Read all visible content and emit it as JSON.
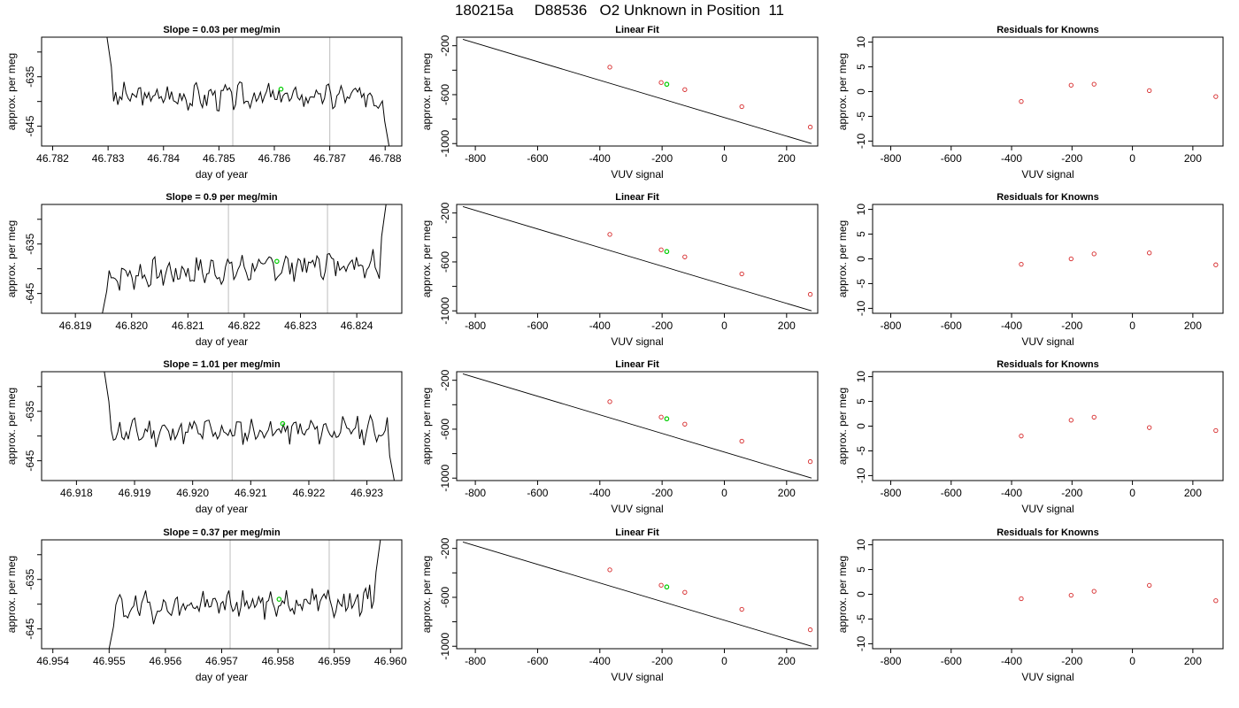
{
  "figure": {
    "title": "180215a     D88536   O2 Unknown in Position  11"
  },
  "chart_data": [
    {
      "type": "line",
      "panel": "trace",
      "row": 0,
      "title": "Slope =  0.03  per meg/min",
      "xlabel": "day of year",
      "ylabel": "approx. per meg",
      "xlim": [
        46.7818,
        46.7883
      ],
      "ylim": [
        -649,
        -627
      ],
      "xticks": [
        46.782,
        46.783,
        46.784,
        46.785,
        46.786,
        46.787,
        46.788
      ],
      "xtick_labels": [
        "46.782",
        "46.783",
        "46.784",
        "46.785",
        "46.786",
        "46.787",
        "46.788"
      ],
      "yticks": [
        -645,
        -640,
        -635,
        -630
      ],
      "ytick_labels": [
        "-645",
        "",
        "-635",
        ""
      ],
      "series": [
        {
          "x_start": 46.7831,
          "x_end": 46.78795,
          "baseline": -639,
          "lead_in": -627,
          "lead_out": -649,
          "amplitude": 2.0,
          "trend": 0.0,
          "seed": 3
        }
      ],
      "vlines": [
        46.78525,
        46.787
      ],
      "marker": {
        "x": 46.78612,
        "y": -637.5,
        "color": "#00cc00"
      }
    },
    {
      "type": "scatter",
      "panel": "linear-fit",
      "row": 0,
      "title": "Linear Fit",
      "xlabel": "VUV signal",
      "ylabel": "approx. per meg",
      "xlim": [
        -860,
        300
      ],
      "ylim": [
        -1020,
        -130
      ],
      "xticks": [
        -800,
        -600,
        -400,
        -200,
        0,
        200
      ],
      "xtick_labels": [
        "-800",
        "-600",
        "-400",
        "-200",
        "0",
        "200"
      ],
      "yticks": [
        -1000,
        -800,
        -600,
        -400,
        -200
      ],
      "ytick_labels": [
        "-1000",
        "",
        "-600",
        "",
        "-200"
      ],
      "line": {
        "x": [
          -840,
          280
        ],
        "y": [
          -148,
          -1000
        ]
      },
      "points": {
        "x": [
          -368,
          -203,
          -127,
          56,
          276
        ],
        "y": [
          -375,
          -501,
          -559,
          -698,
          -865
        ],
        "color": "#d62728"
      },
      "marker": {
        "x": -185,
        "y": -515,
        "color": "#00cc00"
      }
    },
    {
      "type": "scatter",
      "panel": "residuals",
      "row": 0,
      "title": "Residuals for Knowns",
      "xlabel": "VUV signal",
      "ylabel": "approx. per meg",
      "xlim": [
        -860,
        300
      ],
      "ylim": [
        -11,
        11
      ],
      "xticks": [
        -800,
        -600,
        -400,
        -200,
        0,
        200
      ],
      "xtick_labels": [
        "-800",
        "-600",
        "-400",
        "-200",
        "0",
        "200"
      ],
      "yticks": [
        -10,
        -5,
        0,
        5,
        10
      ],
      "ytick_labels": [
        "-10",
        "-5",
        "0",
        "5",
        "10"
      ],
      "points": {
        "x": [
          -368,
          -203,
          -127,
          56,
          276
        ],
        "y": [
          -2.0,
          1.3,
          1.5,
          0.2,
          -1.0
        ],
        "color": "#d62728"
      }
    },
    {
      "type": "line",
      "panel": "trace",
      "row": 1,
      "title": "Slope =  0.9  per meg/min",
      "xlabel": "day of year",
      "ylabel": "approx. per meg",
      "xlim": [
        46.8184,
        46.8248
      ],
      "ylim": [
        -649,
        -627
      ],
      "xticks": [
        46.819,
        46.82,
        46.821,
        46.822,
        46.823,
        46.824
      ],
      "xtick_labels": [
        "46.819",
        "46.820",
        "46.821",
        "46.822",
        "46.823",
        "46.824"
      ],
      "yticks": [
        -645,
        -640,
        -635,
        -630
      ],
      "ytick_labels": [
        "-645",
        "",
        "-635",
        ""
      ],
      "series": [
        {
          "x_start": 46.8196,
          "x_end": 46.8244,
          "baseline": -640,
          "lead_in": -649,
          "lead_out": -627,
          "amplitude": 2.2,
          "trend": 3.0,
          "seed": 7
        }
      ],
      "vlines": [
        46.82172,
        46.82348
      ],
      "marker": {
        "x": 46.82258,
        "y": -638.5,
        "color": "#00cc00"
      }
    },
    {
      "type": "scatter",
      "panel": "linear-fit",
      "row": 1,
      "title": "Linear Fit",
      "xlabel": "VUV signal",
      "ylabel": "approx. per meg",
      "xlim": [
        -860,
        300
      ],
      "ylim": [
        -1020,
        -130
      ],
      "xticks": [
        -800,
        -600,
        -400,
        -200,
        0,
        200
      ],
      "xtick_labels": [
        "-800",
        "-600",
        "-400",
        "-200",
        "0",
        "200"
      ],
      "yticks": [
        -1000,
        -800,
        -600,
        -400,
        -200
      ],
      "ytick_labels": [
        "-1000",
        "",
        "-600",
        "",
        "-200"
      ],
      "line": {
        "x": [
          -840,
          280
        ],
        "y": [
          -148,
          -1000
        ]
      },
      "points": {
        "x": [
          -368,
          -203,
          -127,
          56,
          276
        ],
        "y": [
          -375,
          -501,
          -559,
          -698,
          -865
        ],
        "color": "#d62728"
      },
      "marker": {
        "x": -185,
        "y": -515,
        "color": "#00cc00"
      }
    },
    {
      "type": "scatter",
      "panel": "residuals",
      "row": 1,
      "title": "Residuals for Knowns",
      "xlabel": "VUV signal",
      "ylabel": "approx. per meg",
      "xlim": [
        -860,
        300
      ],
      "ylim": [
        -11,
        11
      ],
      "xticks": [
        -800,
        -600,
        -400,
        -200,
        0,
        200
      ],
      "xtick_labels": [
        "-800",
        "-600",
        "-400",
        "-200",
        "0",
        "200"
      ],
      "yticks": [
        -10,
        -5,
        0,
        5,
        10
      ],
      "ytick_labels": [
        "-10",
        "-5",
        "0",
        "5",
        "10"
      ],
      "points": {
        "x": [
          -368,
          -203,
          -127,
          56,
          276
        ],
        "y": [
          -1.1,
          0.0,
          1.0,
          1.2,
          -1.2
        ],
        "color": "#d62728"
      }
    },
    {
      "type": "line",
      "panel": "trace",
      "row": 2,
      "title": "Slope =  1.01  per meg/min",
      "xlabel": "day of year",
      "ylabel": "approx. per meg",
      "xlim": [
        46.9174,
        46.9236
      ],
      "ylim": [
        -649,
        -627
      ],
      "xticks": [
        46.918,
        46.919,
        46.92,
        46.921,
        46.922,
        46.923
      ],
      "xtick_labels": [
        "46.918",
        "46.919",
        "46.920",
        "46.921",
        "46.922",
        "46.923"
      ],
      "yticks": [
        -645,
        -640,
        -635,
        -630
      ],
      "ytick_labels": [
        "-645",
        "",
        "-635",
        ""
      ],
      "series": [
        {
          "x_start": 46.9186,
          "x_end": 46.92335,
          "baseline": -639,
          "lead_in": -627,
          "lead_out": -649,
          "amplitude": 2.0,
          "trend": 0.6,
          "seed": 11
        }
      ],
      "vlines": [
        46.92068,
        46.92243
      ],
      "marker": {
        "x": 46.92155,
        "y": -637.5,
        "color": "#00cc00"
      }
    },
    {
      "type": "scatter",
      "panel": "linear-fit",
      "row": 2,
      "title": "Linear Fit",
      "xlabel": "VUV signal",
      "ylabel": "approx. per meg",
      "xlim": [
        -860,
        300
      ],
      "ylim": [
        -1020,
        -130
      ],
      "xticks": [
        -800,
        -600,
        -400,
        -200,
        0,
        200
      ],
      "xtick_labels": [
        "-800",
        "-600",
        "-400",
        "-200",
        "0",
        "200"
      ],
      "yticks": [
        -1000,
        -800,
        -600,
        -400,
        -200
      ],
      "ytick_labels": [
        "-1000",
        "",
        "-600",
        "",
        "-200"
      ],
      "line": {
        "x": [
          -840,
          280
        ],
        "y": [
          -148,
          -1000
        ]
      },
      "points": {
        "x": [
          -368,
          -203,
          -127,
          56,
          276
        ],
        "y": [
          -375,
          -501,
          -559,
          -698,
          -865
        ],
        "color": "#d62728"
      },
      "marker": {
        "x": -185,
        "y": -515,
        "color": "#00cc00"
      }
    },
    {
      "type": "scatter",
      "panel": "residuals",
      "row": 2,
      "title": "Residuals for Knowns",
      "xlabel": "VUV signal",
      "ylabel": "approx. per meg",
      "xlim": [
        -860,
        300
      ],
      "ylim": [
        -11,
        11
      ],
      "xticks": [
        -800,
        -600,
        -400,
        -200,
        0,
        200
      ],
      "xtick_labels": [
        "-800",
        "-600",
        "-400",
        "-200",
        "0",
        "200"
      ],
      "yticks": [
        -10,
        -5,
        0,
        5,
        10
      ],
      "ytick_labels": [
        "-10",
        "-5",
        "0",
        "5",
        "10"
      ],
      "points": {
        "x": [
          -368,
          -203,
          -127,
          56,
          276
        ],
        "y": [
          -2.0,
          1.2,
          1.8,
          -0.3,
          -0.9
        ],
        "color": "#d62728"
      }
    },
    {
      "type": "line",
      "panel": "trace",
      "row": 3,
      "title": "Slope =  0.37  per meg/min",
      "xlabel": "day of year",
      "ylabel": "approx. per meg",
      "xlim": [
        46.9538,
        46.9602
      ],
      "ylim": [
        -649,
        -627
      ],
      "xticks": [
        46.954,
        46.955,
        46.956,
        46.957,
        46.958,
        46.959,
        46.96
      ],
      "xtick_labels": [
        "46.954",
        "46.955",
        "46.956",
        "46.957",
        "46.958",
        "46.959",
        "46.960"
      ],
      "yticks": [
        -645,
        -640,
        -635,
        -630
      ],
      "ytick_labels": [
        "-645",
        "",
        "-635",
        ""
      ],
      "series": [
        {
          "x_start": 46.95512,
          "x_end": 46.9597,
          "baseline": -640,
          "lead_in": -649,
          "lead_out": -627,
          "amplitude": 2.2,
          "trend": 1.5,
          "seed": 19
        }
      ],
      "vlines": [
        46.95715,
        46.95891
      ],
      "marker": {
        "x": 46.95802,
        "y": -639,
        "color": "#00cc00"
      }
    },
    {
      "type": "scatter",
      "panel": "linear-fit",
      "row": 3,
      "title": "Linear Fit",
      "xlabel": "VUV signal",
      "ylabel": "approx. per meg",
      "xlim": [
        -860,
        300
      ],
      "ylim": [
        -1020,
        -130
      ],
      "xticks": [
        -800,
        -600,
        -400,
        -200,
        0,
        200
      ],
      "xtick_labels": [
        "-800",
        "-600",
        "-400",
        "-200",
        "0",
        "200"
      ],
      "yticks": [
        -1000,
        -800,
        -600,
        -400,
        -200
      ],
      "ytick_labels": [
        "-1000",
        "",
        "-600",
        "",
        "-200"
      ],
      "line": {
        "x": [
          -840,
          280
        ],
        "y": [
          -148,
          -1000
        ]
      },
      "points": {
        "x": [
          -368,
          -203,
          -127,
          56,
          276
        ],
        "y": [
          -375,
          -501,
          -559,
          -698,
          -865
        ],
        "color": "#d62728"
      },
      "marker": {
        "x": -185,
        "y": -515,
        "color": "#00cc00"
      }
    },
    {
      "type": "scatter",
      "panel": "residuals",
      "row": 3,
      "title": "Residuals for Knowns",
      "xlabel": "VUV signal",
      "ylabel": "approx. per meg",
      "xlim": [
        -860,
        300
      ],
      "ylim": [
        -11,
        11
      ],
      "xticks": [
        -800,
        -600,
        -400,
        -200,
        0,
        200
      ],
      "xtick_labels": [
        "-800",
        "-600",
        "-400",
        "-200",
        "0",
        "200"
      ],
      "yticks": [
        -10,
        -5,
        0,
        5,
        10
      ],
      "ytick_labels": [
        "-10",
        "-5",
        "0",
        "5",
        "10"
      ],
      "points": {
        "x": [
          -368,
          -203,
          -127,
          56,
          276
        ],
        "y": [
          -0.9,
          -0.2,
          0.6,
          1.8,
          -1.3
        ],
        "color": "#d62728"
      }
    }
  ]
}
